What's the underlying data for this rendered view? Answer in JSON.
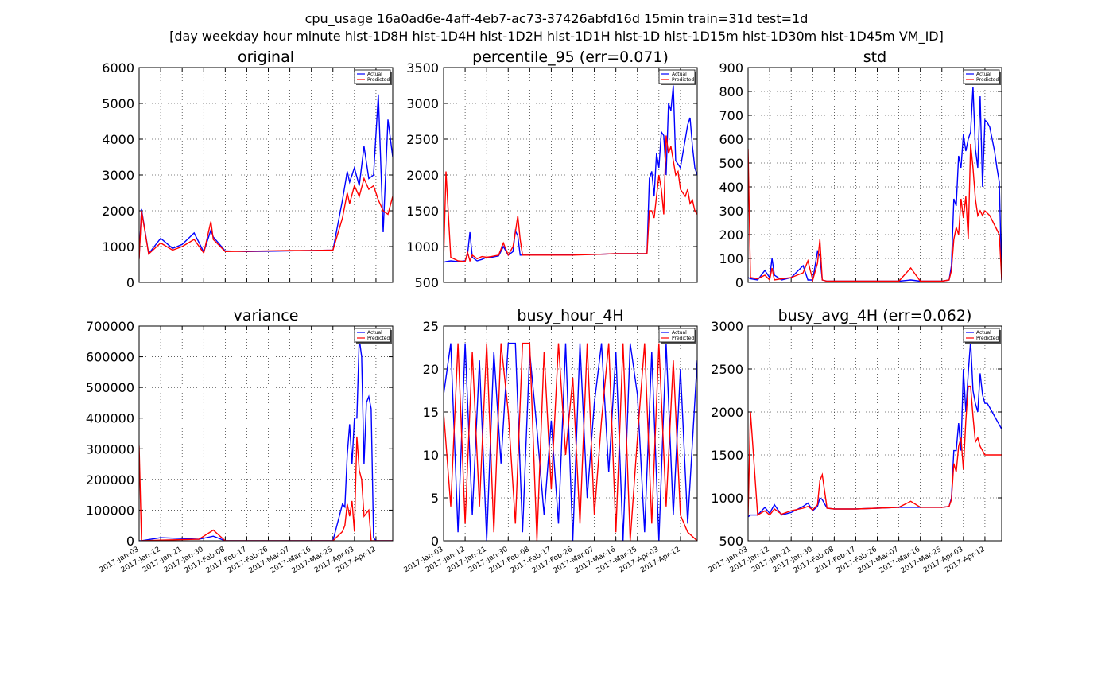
{
  "figure": {
    "title_line_1": "cpu_usage 16a0ad6e-4aff-4eb7-ac73-37426abfd16d 15min train=31d test=1d",
    "title_line_2": "[day weekday hour minute hist-1D8H hist-1D4H hist-1D2H hist-1D1H hist-1D hist-1D15m hist-1D30m hist-1D45m VM_ID]"
  },
  "colors": {
    "actual": "#0000ff",
    "predicted": "#ff0000",
    "grid": "#000000"
  },
  "legend": {
    "actual": "Actual",
    "predicted": "Predicted",
    "placement": "top-right"
  },
  "x_axis": {
    "type": "date",
    "range": [
      "2017-01-03",
      "2017-04-19"
    ],
    "tick_labels": [
      "2017-Jan-03",
      "2017-Jan-12",
      "2017-Jan-21",
      "2017-Jan-30",
      "2017-Feb-08",
      "2017-Feb-17",
      "2017-Feb-26",
      "2017-Mar-07",
      "2017-Mar-16",
      "2017-Mar-25",
      "2017-Apr-03",
      "2017-Apr-12"
    ]
  },
  "chart_data": [
    {
      "id": "original",
      "type": "line",
      "title": "original",
      "ylim": [
        0,
        6000
      ],
      "grid": true,
      "yticks": [
        "0",
        "1000",
        "2000",
        "3000",
        "4000",
        "5000",
        "6000"
      ],
      "x": [
        "2017-01-03",
        "2017-01-04",
        "2017-01-07",
        "2017-01-12",
        "2017-01-17",
        "2017-01-21",
        "2017-01-26",
        "2017-01-30",
        "2017-02-02",
        "2017-02-03",
        "2017-02-08",
        "2017-02-17",
        "2017-02-26",
        "2017-03-07",
        "2017-03-16",
        "2017-03-25",
        "2017-03-29",
        "2017-03-31",
        "2017-04-01",
        "2017-04-03",
        "2017-04-05",
        "2017-04-07",
        "2017-04-09",
        "2017-04-11",
        "2017-04-13",
        "2017-04-15",
        "2017-04-17",
        "2017-04-19"
      ],
      "series": [
        {
          "name": "Actual",
          "values": [
            700,
            2050,
            800,
            1230,
            950,
            1060,
            1380,
            850,
            1460,
            1270,
            880,
            860,
            870,
            880,
            890,
            900,
            2300,
            3100,
            2800,
            3200,
            2700,
            3800,
            2900,
            3000,
            5250,
            1400,
            4550,
            3500
          ]
        },
        {
          "name": "Predicted",
          "values": [
            650,
            2000,
            790,
            1100,
            900,
            1000,
            1200,
            820,
            1700,
            1200,
            860,
            870,
            880,
            890,
            890,
            900,
            1800,
            2500,
            2200,
            2700,
            2400,
            2900,
            2600,
            2700,
            2300,
            2000,
            1900,
            2400
          ]
        }
      ]
    },
    {
      "id": "percentile-95",
      "type": "line",
      "title": "percentile_95 (err=0.071)",
      "ylim": [
        500,
        3500
      ],
      "grid": true,
      "yticks": [
        "500",
        "1000",
        "1500",
        "2000",
        "2500",
        "3000",
        "3500"
      ],
      "x": [
        "2017-01-03",
        "2017-01-04",
        "2017-01-06",
        "2017-01-09",
        "2017-01-12",
        "2017-01-13",
        "2017-01-14",
        "2017-01-15",
        "2017-01-17",
        "2017-01-19",
        "2017-01-21",
        "2017-01-23",
        "2017-01-26",
        "2017-01-28",
        "2017-01-30",
        "2017-02-01",
        "2017-02-02",
        "2017-02-03",
        "2017-02-04",
        "2017-02-05",
        "2017-02-08",
        "2017-02-17",
        "2017-02-26",
        "2017-03-07",
        "2017-03-16",
        "2017-03-25",
        "2017-03-29",
        "2017-03-30",
        "2017-03-31",
        "2017-04-01",
        "2017-04-02",
        "2017-04-03",
        "2017-04-04",
        "2017-04-05",
        "2017-04-06",
        "2017-04-07",
        "2017-04-08",
        "2017-04-09",
        "2017-04-10",
        "2017-04-11",
        "2017-04-12",
        "2017-04-13",
        "2017-04-14",
        "2017-04-15",
        "2017-04-16",
        "2017-04-17",
        "2017-04-18",
        "2017-04-19"
      ],
      "series": [
        {
          "name": "Actual",
          "values": [
            780,
            790,
            800,
            790,
            800,
            890,
            1200,
            850,
            800,
            820,
            850,
            850,
            870,
            1000,
            880,
            930,
            1220,
            1150,
            880,
            880,
            880,
            880,
            890,
            890,
            900,
            900,
            900,
            1950,
            2050,
            1700,
            2300,
            2100,
            2600,
            2550,
            2000,
            3000,
            2900,
            3250,
            2200,
            2150,
            2100,
            2300,
            2500,
            2700,
            2800,
            2400,
            2100,
            2000
          ]
        },
        {
          "name": "Predicted",
          "values": [
            790,
            2050,
            850,
            800,
            790,
            920,
            800,
            880,
            830,
            860,
            850,
            860,
            880,
            1050,
            880,
            1000,
            1200,
            1430,
            1100,
            880,
            880,
            880,
            880,
            890,
            900,
            900,
            900,
            1500,
            1500,
            1400,
            1700,
            2000,
            1800,
            1450,
            2550,
            2300,
            2400,
            2200,
            2000,
            2050,
            1800,
            1750,
            1700,
            1800,
            1600,
            1650,
            1500,
            1450
          ]
        }
      ]
    },
    {
      "id": "std",
      "type": "line",
      "title": "std",
      "ylim": [
        0,
        900
      ],
      "grid": true,
      "yticks": [
        "0",
        "100",
        "200",
        "300",
        "400",
        "500",
        "600",
        "700",
        "800",
        "900"
      ],
      "x": [
        "2017-01-03",
        "2017-01-04",
        "2017-01-07",
        "2017-01-10",
        "2017-01-12",
        "2017-01-13",
        "2017-01-14",
        "2017-01-17",
        "2017-01-21",
        "2017-01-26",
        "2017-01-28",
        "2017-01-30",
        "2017-02-01",
        "2017-02-02",
        "2017-02-03",
        "2017-02-05",
        "2017-02-08",
        "2017-02-17",
        "2017-02-26",
        "2017-03-07",
        "2017-03-12",
        "2017-03-16",
        "2017-03-25",
        "2017-03-28",
        "2017-03-29",
        "2017-03-30",
        "2017-03-31",
        "2017-04-01",
        "2017-04-02",
        "2017-04-03",
        "2017-04-04",
        "2017-04-05",
        "2017-04-06",
        "2017-04-07",
        "2017-04-08",
        "2017-04-09",
        "2017-04-10",
        "2017-04-11",
        "2017-04-12",
        "2017-04-13",
        "2017-04-14",
        "2017-04-15",
        "2017-04-16",
        "2017-04-17",
        "2017-04-18",
        "2017-04-19"
      ],
      "series": [
        {
          "name": "Actual",
          "values": [
            20,
            15,
            10,
            50,
            20,
            100,
            30,
            10,
            20,
            70,
            10,
            10,
            130,
            110,
            10,
            5,
            5,
            5,
            5,
            5,
            10,
            5,
            5,
            10,
            70,
            350,
            320,
            530,
            480,
            620,
            550,
            600,
            630,
            820,
            560,
            480,
            780,
            400,
            680,
            670,
            650,
            600,
            550,
            480,
            420,
            10
          ]
        },
        {
          "name": "Predicted",
          "values": [
            560,
            20,
            15,
            30,
            10,
            60,
            10,
            15,
            20,
            40,
            90,
            10,
            80,
            180,
            10,
            5,
            5,
            5,
            5,
            5,
            60,
            5,
            5,
            10,
            50,
            180,
            230,
            200,
            350,
            270,
            360,
            180,
            580,
            480,
            350,
            280,
            300,
            280,
            300,
            290,
            280,
            260,
            240,
            220,
            200,
            10
          ]
        }
      ]
    },
    {
      "id": "variance",
      "type": "line",
      "title": "variance",
      "ylim": [
        0,
        700000
      ],
      "grid": true,
      "yticks": [
        "0",
        "100000",
        "200000",
        "300000",
        "400000",
        "500000",
        "600000",
        "700000"
      ],
      "x": [
        "2017-01-03",
        "2017-01-04",
        "2017-01-12",
        "2017-01-28",
        "2017-02-03",
        "2017-02-08",
        "2017-03-25",
        "2017-03-29",
        "2017-03-30",
        "2017-03-31",
        "2017-04-01",
        "2017-04-02",
        "2017-04-03",
        "2017-04-04",
        "2017-04-05",
        "2017-04-06",
        "2017-04-07",
        "2017-04-08",
        "2017-04-09",
        "2017-04-10",
        "2017-04-11",
        "2017-04-12",
        "2017-04-13",
        "2017-04-14",
        "2017-04-15",
        "2017-04-16",
        "2017-04-17",
        "2017-04-18",
        "2017-04-19"
      ],
      "series": [
        {
          "name": "Actual",
          "values": [
            0,
            0,
            10000,
            5000,
            15000,
            0,
            0,
            120000,
            110000,
            280000,
            380000,
            250000,
            400000,
            400000,
            660000,
            600000,
            250000,
            450000,
            470000,
            430000,
            10000,
            0,
            0,
            0,
            0,
            0,
            0,
            0,
            0
          ]
        },
        {
          "name": "Predicted",
          "values": [
            310000,
            0,
            2000,
            5000,
            35000,
            0,
            0,
            30000,
            50000,
            120000,
            80000,
            130000,
            30000,
            340000,
            230000,
            200000,
            80000,
            90000,
            100000,
            0,
            0,
            0,
            0,
            0,
            0,
            0,
            0,
            0,
            0
          ]
        }
      ]
    },
    {
      "id": "busy-hour-4h",
      "type": "line",
      "title": "busy_hour_4H",
      "ylim": [
        0,
        25
      ],
      "grid": true,
      "yticks": [
        "0",
        "5",
        "10",
        "15",
        "20",
        "25"
      ],
      "x": [
        "2017-01-03",
        "2017-01-06",
        "2017-01-09",
        "2017-01-12",
        "2017-01-15",
        "2017-01-18",
        "2017-01-21",
        "2017-01-24",
        "2017-01-27",
        "2017-01-30",
        "2017-02-02",
        "2017-02-05",
        "2017-02-08",
        "2017-02-11",
        "2017-02-14",
        "2017-02-17",
        "2017-02-20",
        "2017-02-23",
        "2017-02-26",
        "2017-03-01",
        "2017-03-04",
        "2017-03-07",
        "2017-03-10",
        "2017-03-13",
        "2017-03-16",
        "2017-03-19",
        "2017-03-22",
        "2017-03-25",
        "2017-03-28",
        "2017-03-31",
        "2017-04-03",
        "2017-04-06",
        "2017-04-09",
        "2017-04-12",
        "2017-04-15",
        "2017-04-19"
      ],
      "series": [
        {
          "name": "Actual",
          "values": [
            17,
            23,
            1,
            23,
            3,
            21,
            0,
            22,
            9,
            23,
            23,
            1,
            22,
            13,
            3,
            14,
            2,
            23,
            0,
            23,
            5,
            16,
            23,
            8,
            22,
            0,
            23,
            17,
            1,
            22,
            0,
            23,
            3,
            20,
            2,
            21
          ]
        },
        {
          "name": "Predicted",
          "values": [
            15,
            4,
            23,
            2,
            22,
            4,
            23,
            1,
            23,
            15,
            2,
            23,
            23,
            0,
            22,
            6,
            23,
            10,
            19,
            2,
            23,
            3,
            14,
            23,
            1,
            23,
            0,
            12,
            23,
            2,
            23,
            4,
            21,
            3,
            1,
            0
          ]
        }
      ]
    },
    {
      "id": "busy-avg-4h",
      "type": "line",
      "title": "busy_avg_4H (err=0.062)",
      "ylim": [
        500,
        3000
      ],
      "grid": true,
      "yticks": [
        "500",
        "1000",
        "1500",
        "2000",
        "2500",
        "3000"
      ],
      "x": [
        "2017-01-03",
        "2017-01-04",
        "2017-01-07",
        "2017-01-10",
        "2017-01-12",
        "2017-01-14",
        "2017-01-17",
        "2017-01-21",
        "2017-01-26",
        "2017-01-28",
        "2017-01-30",
        "2017-02-01",
        "2017-02-02",
        "2017-02-03",
        "2017-02-05",
        "2017-02-08",
        "2017-02-17",
        "2017-02-26",
        "2017-03-07",
        "2017-03-12",
        "2017-03-16",
        "2017-03-25",
        "2017-03-28",
        "2017-03-29",
        "2017-03-30",
        "2017-03-31",
        "2017-04-01",
        "2017-04-02",
        "2017-04-03",
        "2017-04-04",
        "2017-04-05",
        "2017-04-06",
        "2017-04-07",
        "2017-04-08",
        "2017-04-09",
        "2017-04-10",
        "2017-04-11",
        "2017-04-12",
        "2017-04-13",
        "2017-04-14",
        "2017-04-15",
        "2017-04-16",
        "2017-04-17",
        "2017-04-18",
        "2017-04-19"
      ],
      "series": [
        {
          "name": "Actual",
          "values": [
            780,
            800,
            800,
            890,
            820,
            920,
            800,
            830,
            900,
            940,
            850,
            900,
            1000,
            980,
            880,
            870,
            870,
            880,
            890,
            890,
            890,
            890,
            900,
            1000,
            1550,
            1550,
            1870,
            1550,
            2500,
            2000,
            2450,
            2830,
            2250,
            2100,
            2000,
            2450,
            2200,
            2100,
            2100,
            2050,
            2000,
            1950,
            1900,
            1850,
            1800
          ]
        },
        {
          "name": "Predicted",
          "values": [
            790,
            2000,
            800,
            850,
            800,
            870,
            810,
            850,
            880,
            900,
            860,
            920,
            1200,
            1270,
            880,
            870,
            870,
            880,
            890,
            960,
            890,
            890,
            900,
            980,
            1400,
            1300,
            1600,
            1700,
            1330,
            1900,
            2300,
            2300,
            1950,
            1650,
            1700,
            1600,
            1550,
            1500,
            1500,
            1500,
            1500,
            1500,
            1500,
            1500,
            1500
          ]
        }
      ]
    }
  ]
}
